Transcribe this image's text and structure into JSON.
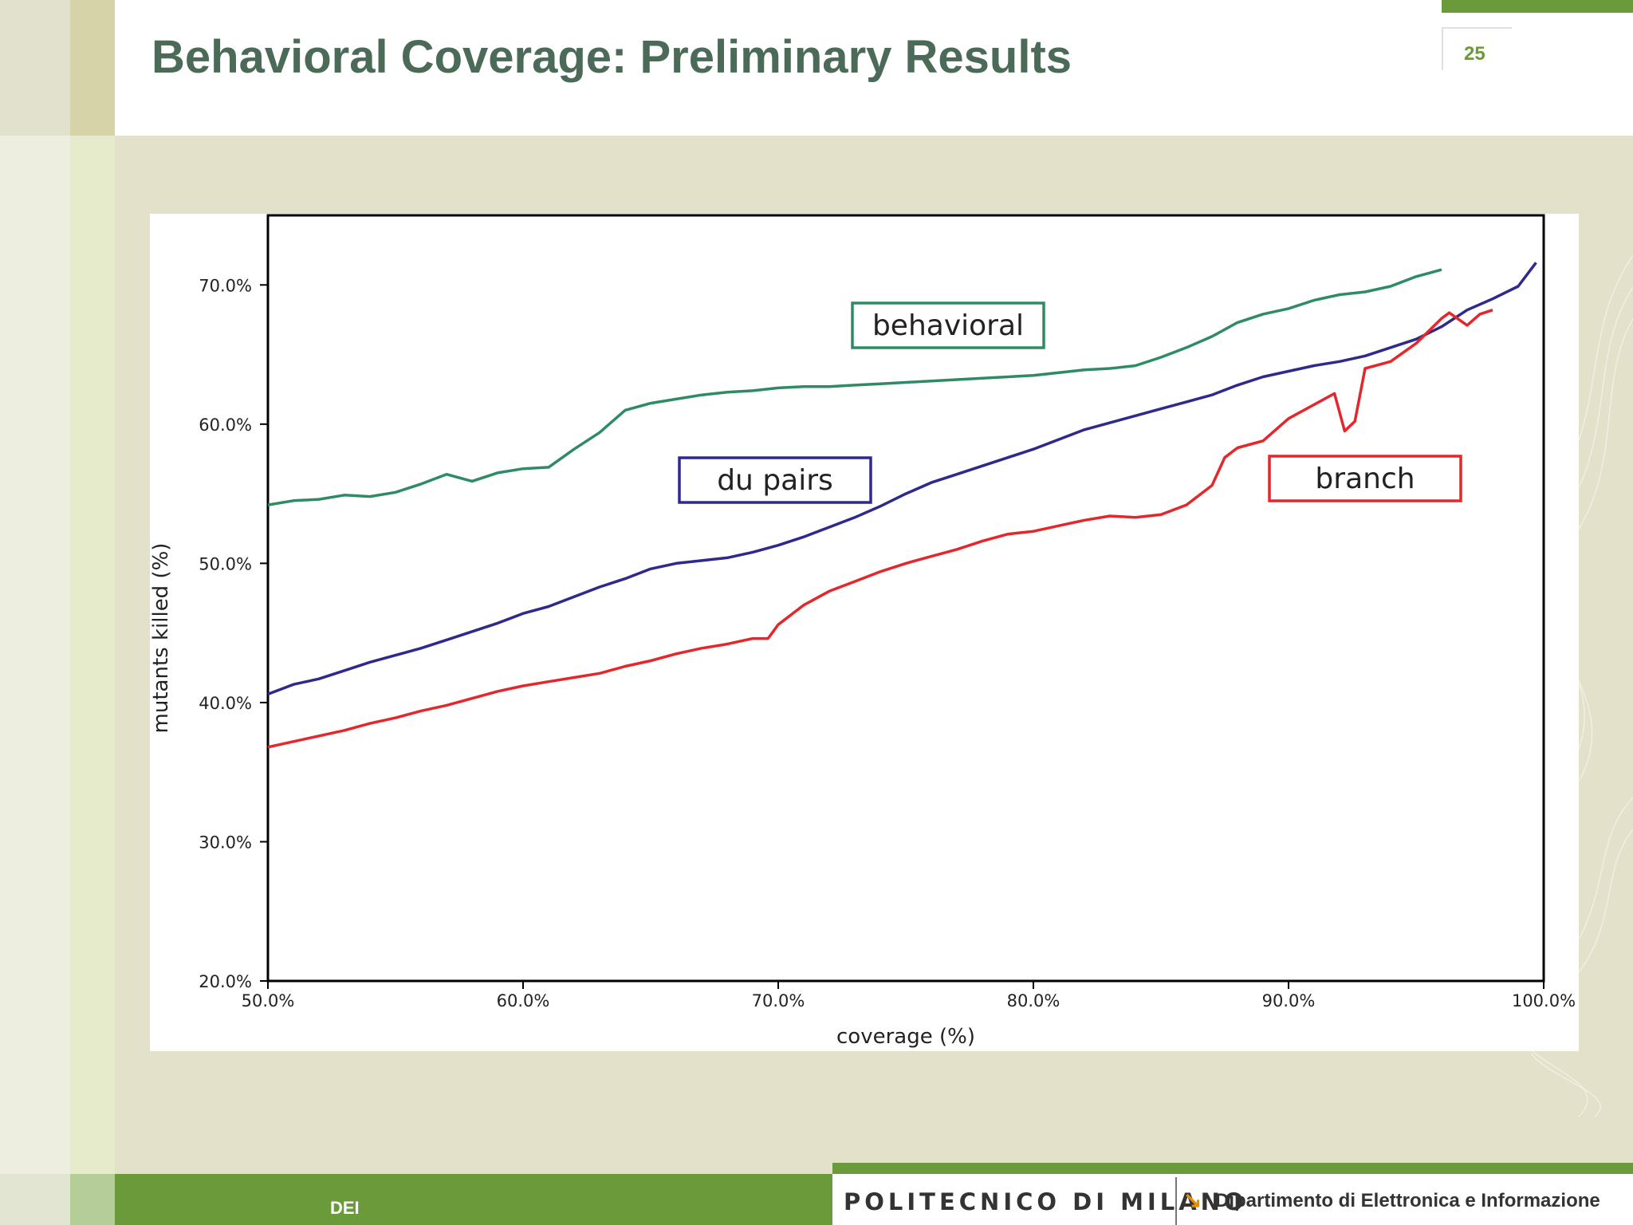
{
  "slide": {
    "title": "Behavioral Coverage: Preliminary Results",
    "page_number": "25",
    "footer_label": "DEI",
    "institution": "POLITECNICO DI MILANO",
    "department": "Dipartimento di Elettronica e Informazione"
  },
  "colors": {
    "accent_green": "#6b9a3a",
    "title_color": "#4b6a58",
    "behavioral": "#2e8b65",
    "du_pairs": "#2e2a8c",
    "branch": "#e3272c"
  },
  "chart_data": {
    "type": "line",
    "title": "",
    "xlabel": "coverage (%)",
    "ylabel": "mutants killed (%)",
    "xlim": [
      50,
      100
    ],
    "ylim": [
      20,
      75
    ],
    "xticks": [
      "50.0%",
      "60.0%",
      "70.0%",
      "80.0%",
      "90.0%",
      "100.0%"
    ],
    "yticks": [
      "20.0%",
      "30.0%",
      "40.0%",
      "50.0%",
      "60.0%",
      "70.0%"
    ],
    "grid": false,
    "series": [
      {
        "name": "behavioral",
        "color": "#2e8b65",
        "label_position": "top-center",
        "x": [
          50,
          51,
          52,
          53,
          54,
          55,
          56,
          57,
          58,
          59,
          60,
          61,
          62,
          63,
          64,
          65,
          66,
          67,
          68,
          69,
          70,
          71,
          72,
          73,
          74,
          75,
          76,
          77,
          78,
          79,
          80,
          81,
          82,
          83,
          84,
          85,
          86,
          87,
          88,
          89,
          90,
          91,
          92,
          93,
          94,
          95,
          96
        ],
        "y": [
          54.2,
          54.5,
          54.6,
          54.9,
          54.8,
          55.1,
          55.7,
          56.4,
          55.9,
          56.5,
          56.8,
          56.9,
          58.2,
          59.4,
          61.0,
          61.5,
          61.8,
          62.1,
          62.3,
          62.4,
          62.6,
          62.7,
          62.7,
          62.8,
          62.9,
          63.0,
          63.1,
          63.2,
          63.3,
          63.4,
          63.5,
          63.7,
          63.9,
          64.0,
          64.2,
          64.8,
          65.5,
          66.3,
          67.3,
          67.9,
          68.3,
          68.9,
          69.3,
          69.5,
          69.9,
          70.6,
          71.1
        ]
      },
      {
        "name": "du pairs",
        "color": "#2e2a8c",
        "label_position": "middle-left",
        "x": [
          50,
          51,
          52,
          53,
          54,
          55,
          56,
          57,
          58,
          59,
          60,
          61,
          62,
          63,
          64,
          65,
          66,
          67,
          68,
          69,
          70,
          71,
          72,
          73,
          74,
          75,
          76,
          77,
          78,
          79,
          80,
          81,
          82,
          83,
          84,
          85,
          86,
          87,
          88,
          89,
          90,
          91,
          92,
          93,
          94,
          95,
          96,
          97,
          98,
          99,
          99.7
        ],
        "y": [
          40.6,
          41.3,
          41.7,
          42.3,
          42.9,
          43.4,
          43.9,
          44.5,
          45.1,
          45.7,
          46.4,
          46.9,
          47.6,
          48.3,
          48.9,
          49.6,
          50.0,
          50.2,
          50.4,
          50.8,
          51.3,
          51.9,
          52.6,
          53.3,
          54.1,
          55.0,
          55.8,
          56.4,
          57.0,
          57.6,
          58.2,
          58.9,
          59.6,
          60.1,
          60.6,
          61.1,
          61.6,
          62.1,
          62.8,
          63.4,
          63.8,
          64.2,
          64.5,
          64.9,
          65.5,
          66.1,
          67.0,
          68.2,
          69.0,
          69.9,
          71.6
        ]
      },
      {
        "name": "branch",
        "color": "#e3272c",
        "label_position": "middle-right",
        "x": [
          50,
          51,
          52,
          53,
          54,
          55,
          56,
          57,
          58,
          59,
          60,
          61,
          62,
          63,
          64,
          65,
          66,
          67,
          68,
          69,
          69.6,
          70,
          71,
          72,
          73,
          74,
          75,
          76,
          77,
          78,
          79,
          80,
          81,
          82,
          83,
          84,
          85,
          86,
          87,
          87.5,
          88,
          89,
          90,
          91,
          91.8,
          92.2,
          92.6,
          93,
          94,
          95,
          96,
          96.3,
          97,
          97.5,
          98
        ],
        "y": [
          36.8,
          37.2,
          37.6,
          38.0,
          38.5,
          38.9,
          39.4,
          39.8,
          40.3,
          40.8,
          41.2,
          41.5,
          41.8,
          42.1,
          42.6,
          43.0,
          43.5,
          43.9,
          44.2,
          44.6,
          44.6,
          45.6,
          47.0,
          48.0,
          48.7,
          49.4,
          50.0,
          50.5,
          51.0,
          51.6,
          52.1,
          52.3,
          52.7,
          53.1,
          53.4,
          53.3,
          53.5,
          54.2,
          55.6,
          57.6,
          58.3,
          58.8,
          60.4,
          61.4,
          62.2,
          59.5,
          60.2,
          64.0,
          64.5,
          65.8,
          67.6,
          68.0,
          67.1,
          67.9,
          68.2
        ]
      }
    ]
  }
}
